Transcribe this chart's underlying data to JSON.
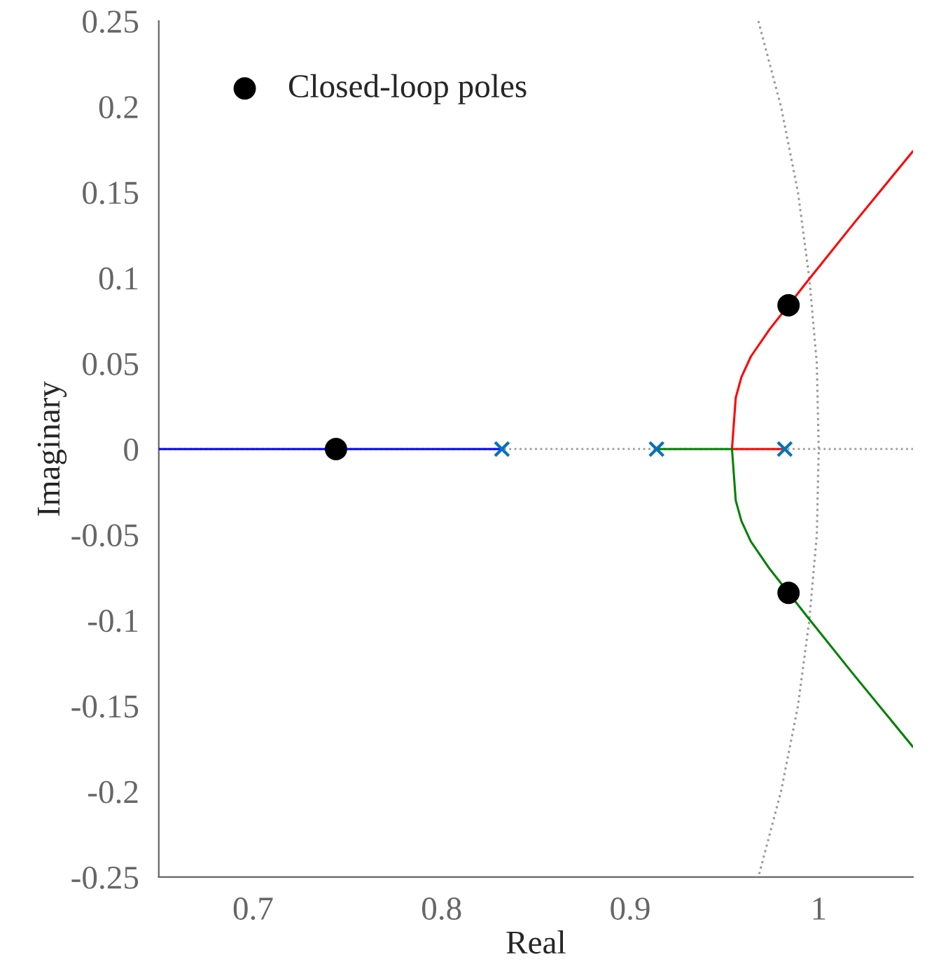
{
  "chart_data": {
    "type": "line",
    "xlabel": "Real",
    "ylabel": "Imaginary",
    "xlim": [
      0.65,
      1.05
    ],
    "xticks": [
      0.7,
      0.8,
      0.9,
      1
    ],
    "ylim": [
      -0.25,
      0.25
    ],
    "yticks": [
      -0.25,
      -0.2,
      -0.15,
      -0.1,
      -0.05,
      0,
      0.05,
      0.1,
      0.15,
      0.2,
      0.25
    ],
    "grid": false,
    "legend": "top left",
    "ref_lines": [
      {
        "axis": "y",
        "value": 0,
        "color": "#999999",
        "line_style": "dotted"
      }
    ],
    "series": [
      {
        "color": "#999999",
        "line_style": "dotted",
        "marker": "none",
        "x": [
          0.968,
          0.98,
          0.989,
          0.995,
          0.999,
          1,
          0.999,
          0.995,
          0.989,
          0.98,
          0.968
        ],
        "values": [
          0.25,
          0.2,
          0.15,
          0.1,
          0.05,
          0,
          -0.05,
          -0.1,
          -0.15,
          -0.2,
          -0.25
        ]
      },
      {
        "color": "#0000ff",
        "line_style": "solid",
        "marker": "none",
        "x": [
          0.65,
          0.832
        ],
        "values": [
          0,
          0
        ]
      },
      {
        "color": "#ff0000",
        "line_style": "solid",
        "marker": "none",
        "x": [
          0.982,
          0.954,
          0.955,
          0.956,
          0.959,
          0.964,
          0.974,
          0.994,
          1.018,
          1.05
        ],
        "values": [
          0,
          0,
          0.015,
          0.03,
          0.042,
          0.054,
          0.07,
          0.098,
          0.131,
          0.174
        ]
      },
      {
        "color": "#008000",
        "line_style": "solid",
        "marker": "none",
        "x": [
          0.914,
          0.954,
          0.955,
          0.956,
          0.959,
          0.964,
          0.974,
          0.994,
          1.018,
          1.05
        ],
        "values": [
          0,
          0,
          -0.015,
          -0.03,
          -0.042,
          -0.054,
          -0.07,
          -0.098,
          -0.131,
          -0.174
        ]
      },
      {
        "type": "scatter",
        "color": "#0072bd",
        "marker": "cross",
        "x": [
          0.832,
          0.914,
          0.982
        ],
        "values": [
          0,
          0,
          0
        ]
      },
      {
        "type": "scatter",
        "name": "Closed-loop poles",
        "color": "#000000",
        "marker": "circle",
        "x": [
          0.744,
          0.984,
          0.984
        ],
        "values": [
          0,
          0.084,
          -0.084
        ]
      }
    ]
  }
}
